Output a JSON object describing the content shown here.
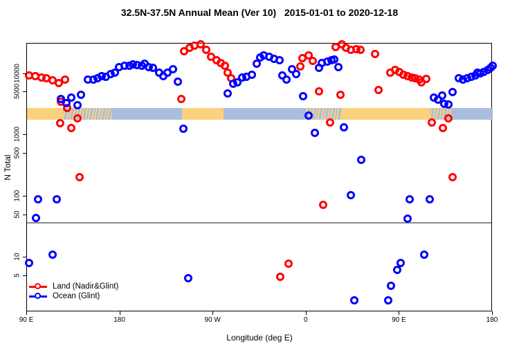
{
  "title": "32.5N-37.5N Annual Mean (Ver 10)   2015-01-01 to 2020-12-18",
  "chart_data": {
    "type": "scatter",
    "title": "32.5N-37.5N Annual Mean (Ver 10)   2015-01-01 to 2020-12-18",
    "xlabel": "Longitude (deg E)",
    "ylabel": "N Total",
    "x_axis": {
      "range_deg": [
        90,
        540
      ],
      "ticks_deg": [
        90,
        180,
        270,
        360,
        450,
        540
      ],
      "tick_labels": [
        "90 E",
        "180",
        "90 W",
        "0",
        "90 E",
        "180"
      ]
    },
    "y_axis": {
      "scale": "log",
      "range": [
        1.3,
        31000
      ],
      "ticks": [
        10000,
        5000,
        1000,
        500,
        100,
        50,
        10,
        5
      ],
      "tick_labels": [
        "10000",
        "5000",
        "1000",
        "500",
        "100",
        "50",
        "10",
        "5"
      ]
    },
    "grid": false,
    "reference_line_n": 37,
    "colors": {
      "land": "#ff0000",
      "ocean": "#0000ff",
      "band_land": "#fad27e",
      "band_ocean": "#a9bedc",
      "ref_line": "#8a8a8a"
    },
    "land_ocean_band": {
      "n_top": 2740,
      "n_bottom": 1780,
      "segments": [
        {
          "type": "land",
          "deg": [
            90,
            125
          ]
        },
        {
          "type": "mixed",
          "deg": [
            125,
            172
          ]
        },
        {
          "type": "ocean",
          "deg": [
            172,
            240
          ]
        },
        {
          "type": "land",
          "deg": [
            240,
            280
          ]
        },
        {
          "type": "ocean",
          "deg": [
            280,
            359
          ]
        },
        {
          "type": "mixed",
          "deg": [
            359,
            394
          ]
        },
        {
          "type": "land",
          "deg": [
            394,
            479
          ]
        },
        {
          "type": "mixed",
          "deg": [
            479,
            501
          ]
        },
        {
          "type": "ocean",
          "deg": [
            501,
            540
          ]
        }
      ]
    },
    "legend": {
      "position": "bottom-left",
      "items": [
        {
          "label": "Land (Nadir&Glint)",
          "color": "#ff0000"
        },
        {
          "label": "Ocean (Glint)",
          "color": "#0000ff"
        }
      ]
    },
    "series": [
      {
        "name": "Land (Nadir&Glint)",
        "color": "#ff0000",
        "points": [
          [
            92,
            9500
          ],
          [
            98,
            9100
          ],
          [
            104,
            8600
          ],
          [
            109,
            8400
          ],
          [
            115,
            7900
          ],
          [
            121,
            7100
          ],
          [
            127,
            8100
          ],
          [
            123,
            3460
          ],
          [
            129,
            2740
          ],
          [
            122,
            1550
          ],
          [
            133,
            1290
          ],
          [
            139,
            1860
          ],
          [
            141,
            205
          ],
          [
            239,
            3840
          ],
          [
            242,
            23500
          ],
          [
            247,
            26500
          ],
          [
            252,
            28500
          ],
          [
            258,
            30000
          ],
          [
            263,
            24700
          ],
          [
            268,
            19100
          ],
          [
            273,
            16800
          ],
          [
            277,
            14900
          ],
          [
            281,
            13600
          ],
          [
            284,
            10300
          ],
          [
            287,
            8400
          ],
          [
            354,
            13300
          ],
          [
            356,
            18100
          ],
          [
            362,
            20100
          ],
          [
            366,
            16400
          ],
          [
            372,
            5100
          ],
          [
            383,
            1590
          ],
          [
            393,
            4500
          ],
          [
            388,
            27000
          ],
          [
            394,
            30000
          ],
          [
            398,
            26500
          ],
          [
            403,
            24700
          ],
          [
            408,
            25500
          ],
          [
            412,
            24700
          ],
          [
            426,
            21200
          ],
          [
            430,
            5370
          ],
          [
            441,
            10500
          ],
          [
            446,
            11700
          ],
          [
            450,
            10800
          ],
          [
            454,
            9700
          ],
          [
            458,
            9200
          ],
          [
            462,
            8700
          ],
          [
            465,
            8400
          ],
          [
            469,
            8100
          ],
          [
            471,
            7300
          ],
          [
            476,
            8300
          ],
          [
            481,
            1590
          ],
          [
            492,
            1290
          ],
          [
            497,
            1860
          ],
          [
            501,
            205
          ],
          [
            376,
            72
          ],
          [
            343,
            8
          ],
          [
            335,
            4.9
          ]
        ]
      },
      {
        "name": "Ocean (Glint)",
        "color": "#0000ff",
        "points": [
          [
            123,
            3840
          ],
          [
            128,
            3290
          ],
          [
            133,
            4040
          ],
          [
            139,
            3040
          ],
          [
            142,
            4480
          ],
          [
            149,
            8100
          ],
          [
            154,
            8100
          ],
          [
            158,
            8400
          ],
          [
            162,
            9200
          ],
          [
            166,
            8900
          ],
          [
            171,
            10000
          ],
          [
            175,
            10500
          ],
          [
            179,
            12900
          ],
          [
            184,
            13600
          ],
          [
            189,
            13600
          ],
          [
            192,
            14400
          ],
          [
            196,
            14000
          ],
          [
            201,
            13600
          ],
          [
            204,
            14700
          ],
          [
            208,
            12900
          ],
          [
            212,
            12600
          ],
          [
            218,
            10500
          ],
          [
            222,
            9200
          ],
          [
            226,
            10500
          ],
          [
            231,
            11900
          ],
          [
            236,
            7500
          ],
          [
            241,
            1260
          ],
          [
            284,
            4750
          ],
          [
            289,
            6960
          ],
          [
            293,
            7330
          ],
          [
            298,
            8600
          ],
          [
            302,
            8900
          ],
          [
            307,
            9700
          ],
          [
            312,
            14700
          ],
          [
            315,
            18600
          ],
          [
            319,
            20100
          ],
          [
            324,
            19100
          ],
          [
            329,
            17700
          ],
          [
            334,
            16800
          ],
          [
            337,
            9500
          ],
          [
            341,
            8100
          ],
          [
            346,
            11900
          ],
          [
            350,
            10000
          ],
          [
            357,
            4260
          ],
          [
            362,
            2060
          ],
          [
            368,
            1080
          ],
          [
            372,
            12600
          ],
          [
            375,
            15100
          ],
          [
            380,
            15900
          ],
          [
            384,
            16800
          ],
          [
            387,
            17200
          ],
          [
            391,
            12900
          ],
          [
            396,
            1330
          ],
          [
            403,
            106
          ],
          [
            413,
            394
          ],
          [
            483,
            4040
          ],
          [
            487,
            3740
          ],
          [
            491,
            4370
          ],
          [
            493,
            3210
          ],
          [
            497,
            3140
          ],
          [
            501,
            4980
          ],
          [
            507,
            8400
          ],
          [
            511,
            8100
          ],
          [
            515,
            8400
          ],
          [
            519,
            8900
          ],
          [
            523,
            9500
          ],
          [
            525,
            10500
          ],
          [
            528,
            10200
          ],
          [
            531,
            10800
          ],
          [
            535,
            11700
          ],
          [
            538,
            12600
          ],
          [
            540,
            13600
          ],
          [
            101,
            90
          ],
          [
            119,
            90
          ],
          [
            99,
            45
          ],
          [
            115,
            11.3
          ],
          [
            92,
            8.3
          ],
          [
            246,
            4.7
          ],
          [
            406,
            2
          ],
          [
            439,
            2
          ],
          [
            442,
            3.5
          ],
          [
            448,
            6.3
          ],
          [
            451,
            8.3
          ],
          [
            458,
            43
          ],
          [
            460,
            90
          ],
          [
            474,
            11.3
          ],
          [
            479,
            90
          ]
        ]
      }
    ]
  }
}
